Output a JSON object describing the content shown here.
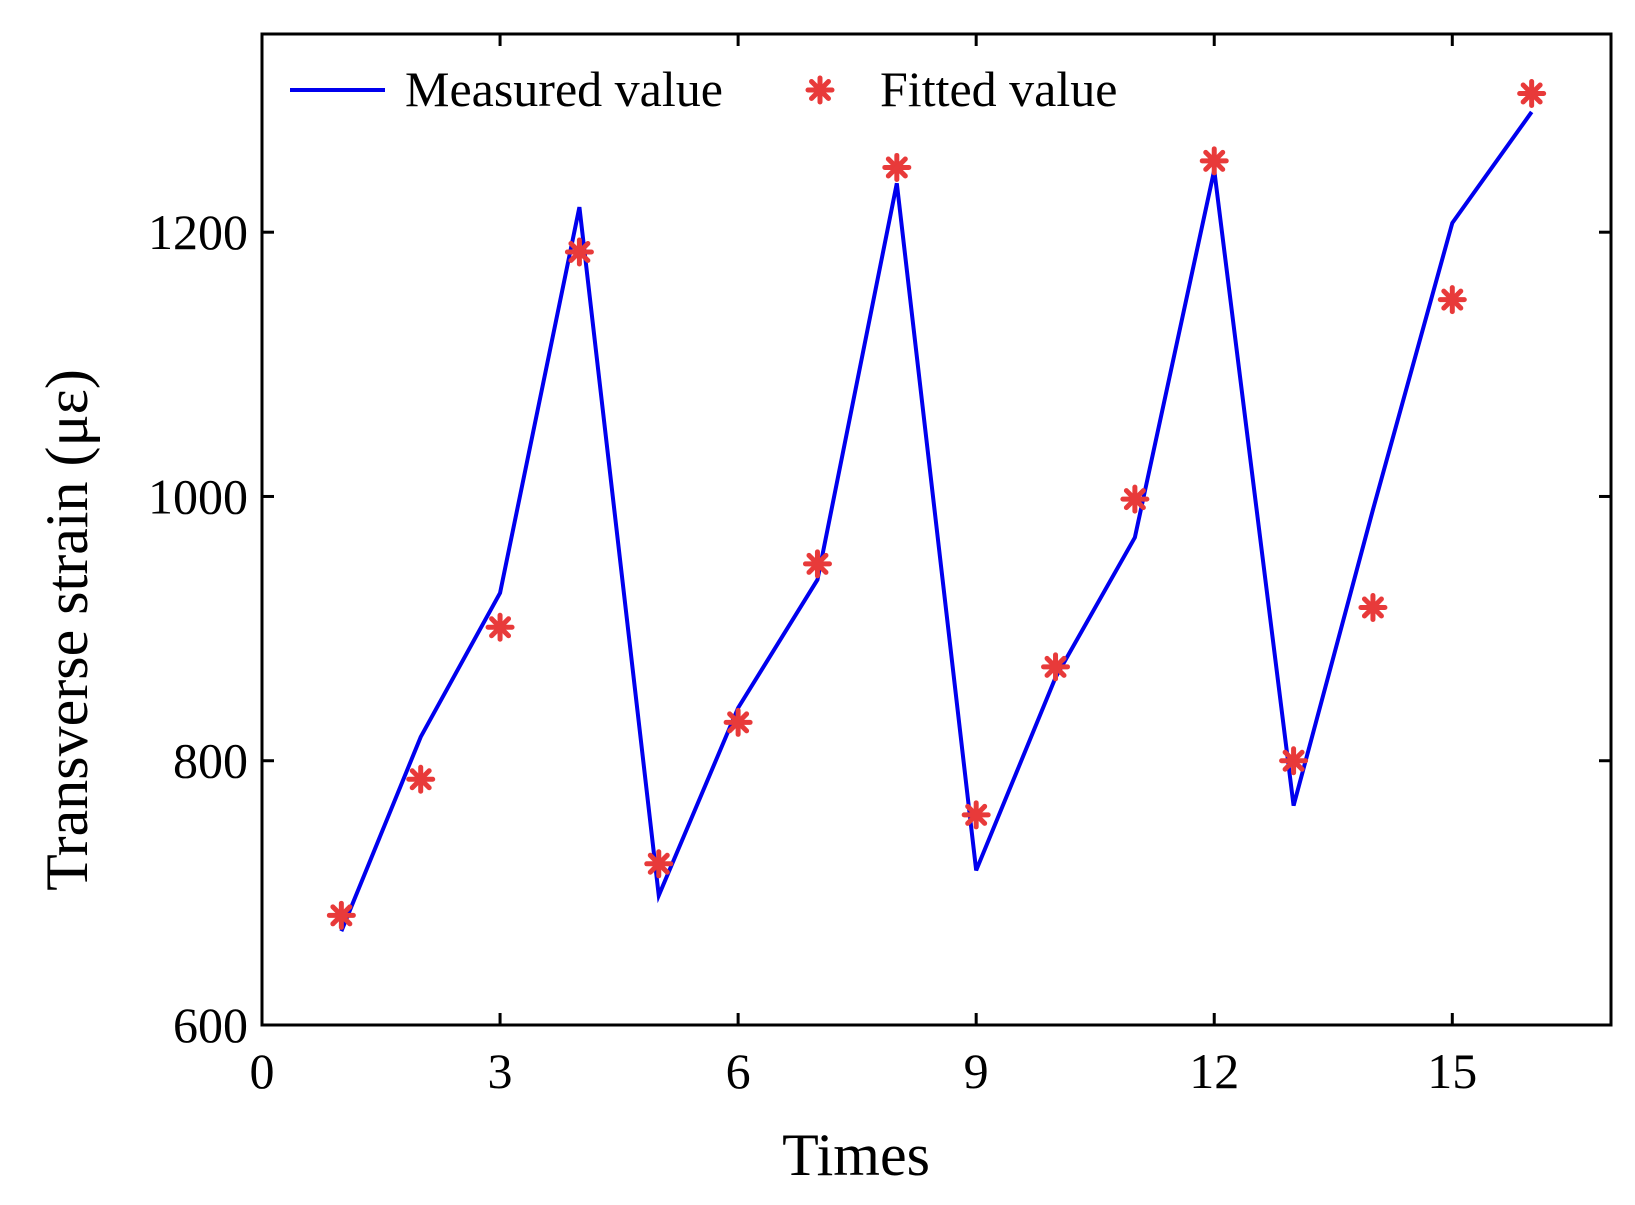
{
  "chart_data": {
    "type": "line",
    "title": "",
    "xlabel": "Times",
    "ylabel": "Transverse strain (με)",
    "xlim": [
      0,
      17
    ],
    "ylim": [
      600,
      1350
    ],
    "xticks": [
      0,
      3,
      6,
      9,
      12,
      15
    ],
    "yticks": [
      600,
      800,
      1000,
      1200
    ],
    "xtick_labels": [
      "0",
      "3",
      "6",
      "9",
      "12",
      "15"
    ],
    "ytick_labels": [
      "600",
      "800",
      "1000",
      "1200"
    ],
    "grid": false,
    "legend_position": "top-left",
    "series": [
      {
        "name": "Measured value",
        "style": "line",
        "color": "#0000ee",
        "x": [
          1,
          2,
          3,
          4,
          5,
          6,
          7,
          8,
          9,
          10,
          11,
          12,
          13,
          14,
          15,
          16
        ],
        "y": [
          671,
          818,
          927,
          1219,
          698,
          840,
          937,
          1237,
          717,
          863,
          969,
          1247,
          766,
          990,
          1207,
          1291
        ]
      },
      {
        "name": "Fitted value",
        "style": "marker",
        "marker": "asterisk",
        "color": "#e83a3a",
        "x": [
          1,
          2,
          3,
          4,
          5,
          6,
          7,
          8,
          9,
          10,
          11,
          12,
          13,
          14,
          15,
          16
        ],
        "y": [
          683,
          786,
          901,
          1185,
          722,
          829,
          949,
          1249,
          759,
          871,
          998,
          1254,
          800,
          916,
          1149,
          1305
        ]
      }
    ]
  }
}
